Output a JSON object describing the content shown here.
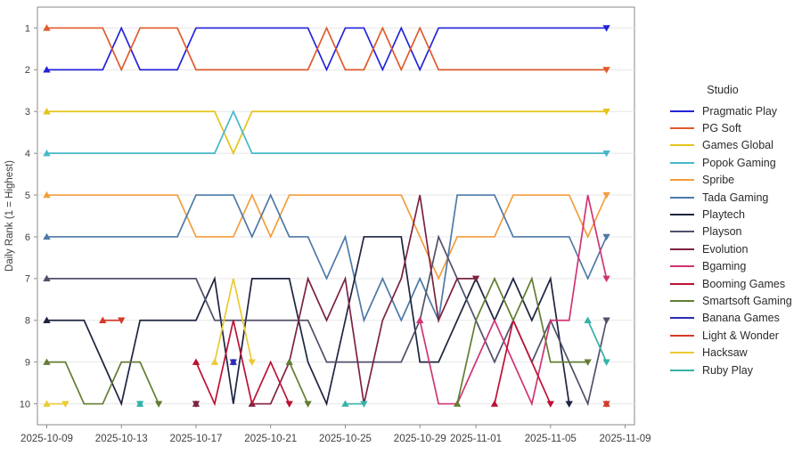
{
  "chart_data": {
    "type": "line",
    "subtype": "bump-rank-chart",
    "title": "",
    "xlabel": "",
    "ylabel": "Daily Rank (1 = Highest)",
    "legend_title": "Studio",
    "legend_position": "right",
    "grid": "horizontal",
    "y_axis_inverted": true,
    "ylim": [
      1,
      10
    ],
    "y_ticks": [
      1,
      2,
      3,
      4,
      5,
      6,
      7,
      8,
      9,
      10
    ],
    "x_ticks": [
      {
        "label": "2025-10-09",
        "day": 0
      },
      {
        "label": "2025-10-13",
        "day": 4
      },
      {
        "label": "2025-10-17",
        "day": 8
      },
      {
        "label": "2025-10-21",
        "day": 12
      },
      {
        "label": "2025-10-25",
        "day": 16
      },
      {
        "label": "2025-10-29",
        "day": 20
      },
      {
        "label": "2025-11-01",
        "day": 23
      },
      {
        "label": "2025-11-05",
        "day": 27
      },
      {
        "label": "2025-11-09",
        "day": 31
      }
    ],
    "x_dates": [
      "2025-10-09",
      "2025-10-10",
      "2025-10-11",
      "2025-10-12",
      "2025-10-13",
      "2025-10-14",
      "2025-10-15",
      "2025-10-16",
      "2025-10-17",
      "2025-10-18",
      "2025-10-19",
      "2025-10-20",
      "2025-10-21",
      "2025-10-22",
      "2025-10-23",
      "2025-10-24",
      "2025-10-25",
      "2025-10-26",
      "2025-10-27",
      "2025-10-28",
      "2025-10-29",
      "2025-10-30",
      "2025-10-31",
      "2025-11-01",
      "2025-11-02",
      "2025-11-03",
      "2025-11-04",
      "2025-11-05",
      "2025-11-06",
      "2025-11-07",
      "2025-11-08"
    ],
    "marker_style": {
      "segment_start": "triangle-up",
      "segment_end": "triangle-down"
    },
    "series": [
      {
        "name": "Pragmatic Play",
        "color": "#2323d9",
        "values": [
          2,
          2,
          2,
          2,
          1,
          2,
          2,
          2,
          1,
          1,
          1,
          1,
          1,
          1,
          1,
          2,
          1,
          1,
          2,
          1,
          2,
          1,
          1,
          1,
          1,
          1,
          1,
          1,
          1,
          1,
          1
        ]
      },
      {
        "name": "PG Soft",
        "color": "#e05a2b",
        "values": [
          1,
          1,
          1,
          1,
          2,
          1,
          1,
          1,
          2,
          2,
          2,
          2,
          2,
          2,
          2,
          1,
          2,
          2,
          1,
          2,
          1,
          2,
          2,
          2,
          2,
          2,
          2,
          2,
          2,
          2,
          2
        ]
      },
      {
        "name": "Games Global",
        "color": "#e6c319",
        "values": [
          3,
          3,
          3,
          3,
          3,
          3,
          3,
          3,
          3,
          3,
          4,
          3,
          3,
          3,
          3,
          3,
          3,
          3,
          3,
          3,
          3,
          3,
          3,
          3,
          3,
          3,
          3,
          3,
          3,
          3,
          3
        ]
      },
      {
        "name": "Popok Gaming",
        "color": "#46b8c9",
        "values": [
          4,
          4,
          4,
          4,
          4,
          4,
          4,
          4,
          4,
          4,
          3,
          4,
          4,
          4,
          4,
          4,
          4,
          4,
          4,
          4,
          4,
          4,
          4,
          4,
          4,
          4,
          4,
          4,
          4,
          4,
          4
        ]
      },
      {
        "name": "Spribe",
        "color": "#f49d3c",
        "values": [
          5,
          5,
          5,
          5,
          5,
          5,
          5,
          5,
          6,
          6,
          6,
          5,
          6,
          5,
          5,
          5,
          5,
          5,
          5,
          5,
          6,
          7,
          6,
          6,
          6,
          5,
          5,
          5,
          5,
          6,
          5
        ]
      },
      {
        "name": "Tada Gaming",
        "color": "#4e79a7",
        "values": [
          6,
          6,
          6,
          6,
          6,
          6,
          6,
          6,
          5,
          5,
          5,
          6,
          5,
          6,
          6,
          7,
          6,
          8,
          7,
          8,
          7,
          8,
          5,
          5,
          5,
          6,
          6,
          6,
          6,
          7,
          6
        ]
      },
      {
        "name": "Playtech",
        "color": "#1d2440",
        "values": [
          8,
          8,
          8,
          9,
          10,
          8,
          8,
          8,
          8,
          7,
          10,
          7,
          7,
          7,
          9,
          10,
          8,
          6,
          6,
          6,
          9,
          9,
          8,
          7,
          8,
          7,
          8,
          7,
          10,
          null,
          null
        ]
      },
      {
        "name": "Playson",
        "color": "#50516b",
        "values": [
          7,
          7,
          7,
          7,
          7,
          7,
          7,
          7,
          7,
          8,
          8,
          8,
          8,
          8,
          8,
          9,
          9,
          9,
          9,
          9,
          8,
          6,
          7,
          8,
          9,
          8,
          9,
          8,
          9,
          10,
          8
        ]
      },
      {
        "name": "Evolution",
        "color": "#7c2242",
        "values": [
          null,
          null,
          null,
          null,
          null,
          null,
          null,
          null,
          10,
          null,
          null,
          10,
          10,
          9,
          7,
          8,
          7,
          10,
          8,
          7,
          5,
          8,
          7,
          7,
          null,
          null,
          null,
          null,
          null,
          null,
          null
        ]
      },
      {
        "name": "Bgaming",
        "color": "#d03474",
        "values": [
          null,
          null,
          null,
          null,
          null,
          null,
          null,
          null,
          null,
          null,
          null,
          null,
          null,
          null,
          null,
          null,
          null,
          null,
          null,
          null,
          8,
          10,
          10,
          9,
          8,
          9,
          10,
          8,
          8,
          5,
          7
        ]
      },
      {
        "name": "Booming Games",
        "color": "#bd1034",
        "values": [
          null,
          null,
          null,
          null,
          null,
          null,
          null,
          null,
          9,
          10,
          8,
          10,
          9,
          10,
          null,
          null,
          null,
          null,
          null,
          null,
          null,
          null,
          null,
          null,
          10,
          8,
          9,
          10,
          null,
          null,
          null
        ]
      },
      {
        "name": "Smartsoft Gaming",
        "color": "#637d32",
        "values": [
          9,
          9,
          10,
          10,
          9,
          9,
          10,
          null,
          null,
          null,
          null,
          null,
          null,
          9,
          10,
          null,
          null,
          null,
          null,
          null,
          null,
          null,
          10,
          8,
          7,
          8,
          7,
          9,
          9,
          9,
          null
        ]
      },
      {
        "name": "Banana Games",
        "color": "#2b2bb8",
        "values": [
          null,
          null,
          null,
          null,
          null,
          null,
          null,
          null,
          null,
          null,
          9,
          null,
          null,
          null,
          null,
          null,
          null,
          null,
          null,
          null,
          null,
          null,
          null,
          null,
          null,
          null,
          null,
          null,
          null,
          null,
          null
        ]
      },
      {
        "name": "Light & Wonder",
        "color": "#d43a2a",
        "values": [
          null,
          null,
          null,
          8,
          8,
          null,
          null,
          null,
          null,
          null,
          null,
          null,
          null,
          null,
          null,
          null,
          null,
          null,
          null,
          null,
          null,
          null,
          null,
          null,
          null,
          null,
          null,
          null,
          null,
          null,
          10
        ]
      },
      {
        "name": "Hacksaw",
        "color": "#ecca34",
        "values": [
          10,
          10,
          null,
          null,
          null,
          null,
          null,
          null,
          null,
          9,
          7,
          9,
          null,
          null,
          null,
          null,
          null,
          null,
          null,
          null,
          null,
          null,
          null,
          null,
          null,
          null,
          null,
          null,
          null,
          null,
          null
        ]
      },
      {
        "name": "Ruby Play",
        "color": "#35b2a8",
        "values": [
          null,
          null,
          null,
          null,
          null,
          10,
          null,
          null,
          null,
          null,
          null,
          null,
          null,
          null,
          null,
          null,
          10,
          10,
          null,
          null,
          null,
          null,
          null,
          null,
          null,
          null,
          null,
          null,
          null,
          8,
          9
        ]
      }
    ]
  }
}
